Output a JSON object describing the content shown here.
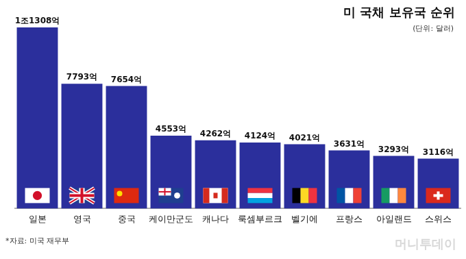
{
  "chart_data": {
    "type": "bar",
    "title": "미 국채 보유국 순위",
    "subtitle": "(단위: 달러)",
    "categories": [
      "일본",
      "영국",
      "중국",
      "케이만군도",
      "캐나다",
      "룩셈부르크",
      "벨기에",
      "프랑스",
      "아일랜드",
      "스위스"
    ],
    "values": [
      11308,
      7793,
      7654,
      4553,
      4262,
      4124,
      4021,
      3631,
      3293,
      3116
    ],
    "value_labels": [
      "1조1308억",
      "7793억",
      "7654억",
      "4553억",
      "4262억",
      "4124억",
      "4021억",
      "3631억",
      "3293억",
      "3116억"
    ],
    "color": "#2b2f9c",
    "ylim": [
      0,
      11308
    ],
    "grid": false,
    "data_labels": true,
    "tick_labels": "x",
    "annotations": [
      {
        "text": "*자료: 미국 재무부"
      },
      {
        "text": "머니투데이"
      }
    ]
  }
}
